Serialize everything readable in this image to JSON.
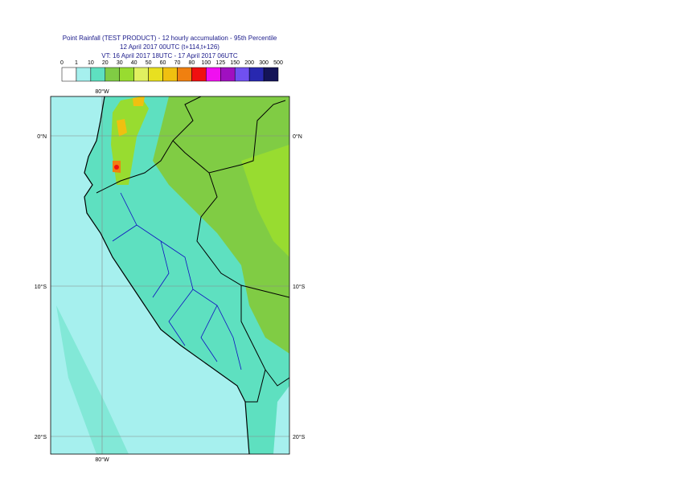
{
  "header": {
    "title": "Point Rainfall (TEST PRODUCT) - 12 hourly accumulation - 95th Percentile",
    "subtitle": "12 April 2017 00UTC (t+114,t+126)",
    "validity": "VT: 16 April 2017 18UTC - 17 April 2017 06UTC"
  },
  "legend": {
    "labels": [
      "0",
      "1",
      "10",
      "20",
      "30",
      "40",
      "50",
      "60",
      "70",
      "80",
      "100",
      "125",
      "150",
      "200",
      "300",
      "500"
    ],
    "colors": [
      "#ffffff",
      "#a6f0ee",
      "#5ee0c0",
      "#80cc44",
      "#98dc30",
      "#e0f060",
      "#e8e020",
      "#f0c010",
      "#f08010",
      "#f01010",
      "#f010f0",
      "#a010c0",
      "#7050f0",
      "#2828b0",
      "#141458"
    ]
  },
  "map": {
    "lon_labels": [
      "80°W"
    ],
    "lat_labels": [
      "0°N",
      "10°S",
      "20°S"
    ]
  }
}
